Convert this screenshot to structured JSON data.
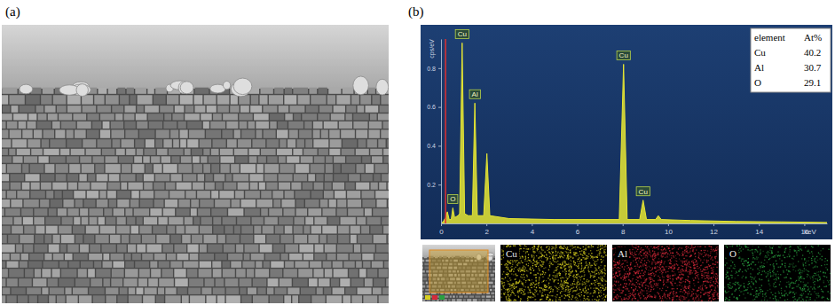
{
  "panel_labels": [
    "(a)",
    "(b)"
  ],
  "chart_data": {
    "type": "area",
    "x_label": "keV",
    "y_label": "cps/eV",
    "x": [
      0,
      0.1,
      0.2,
      0.28,
      0.36,
      0.45,
      0.52,
      0.6,
      0.75,
      0.82,
      0.93,
      1.04,
      1.2,
      1.38,
      1.49,
      1.6,
      1.88,
      2.02,
      2.15,
      3,
      5,
      7.85,
      8.04,
      8.2,
      8.75,
      8.9,
      9.05,
      9.45,
      9.57,
      9.7,
      11,
      13,
      15,
      17
    ],
    "values": [
      0,
      0.01,
      0.03,
      0.06,
      0.02,
      0.02,
      0.08,
      0.03,
      0.04,
      0.05,
      0.93,
      0.05,
      0.04,
      0.04,
      0.62,
      0.04,
      0.04,
      0.36,
      0.04,
      0.025,
      0.02,
      0.02,
      0.82,
      0.02,
      0.02,
      0.12,
      0.02,
      0.02,
      0.04,
      0.02,
      0.015,
      0.01,
      0.008,
      0.005
    ],
    "color": "#e6e632",
    "xlim": [
      0,
      17
    ],
    "xticks": [
      0,
      2,
      4,
      6,
      8,
      10,
      12,
      14,
      16
    ],
    "ylim": [
      0,
      0.95
    ],
    "yticks": [
      0.2,
      0.4,
      0.6,
      0.8
    ],
    "cursor_x": 0.2,
    "annotations": [
      {
        "text": "O",
        "x": 0.52,
        "y": 0.08
      },
      {
        "text": "Cu",
        "x": 0.93,
        "y": 0.93
      },
      {
        "text": "Al",
        "x": 1.49,
        "y": 0.62
      },
      {
        "text": "Cu",
        "x": 8.04,
        "y": 0.82
      },
      {
        "text": "Cu",
        "x": 8.9,
        "y": 0.12
      }
    ]
  },
  "table": {
    "header": [
      "element",
      "At%"
    ],
    "rows": [
      [
        "Cu",
        40.2
      ],
      [
        "Al",
        30.7
      ],
      [
        "O",
        29.1
      ]
    ]
  },
  "maps": [
    {
      "label": "Cu",
      "color": "#d8d020"
    },
    {
      "label": "Al",
      "color": "#d42a3a"
    },
    {
      "label": "O",
      "color": "#2aa040"
    }
  ]
}
